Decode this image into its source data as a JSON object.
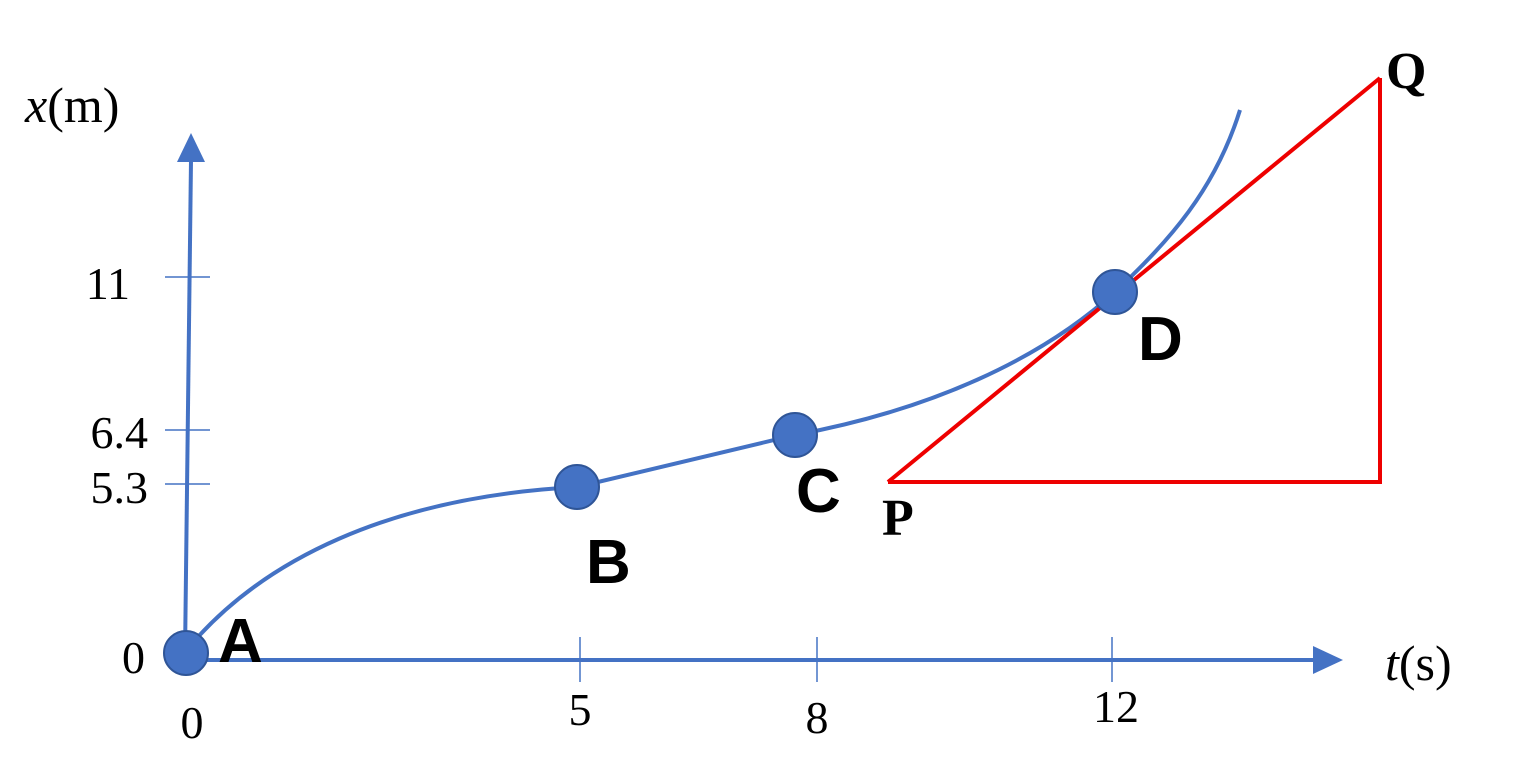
{
  "y_axis": {
    "variable": "x",
    "unit": "(m)",
    "ticks": [
      "11",
      "6.4",
      "5.3",
      "0"
    ]
  },
  "x_axis": {
    "variable": "t",
    "unit": "(s)",
    "ticks": [
      "0",
      "5",
      "8",
      "12"
    ]
  },
  "points": [
    "A",
    "B",
    "C",
    "D"
  ],
  "tangent": {
    "start": "P",
    "end": "Q"
  }
}
